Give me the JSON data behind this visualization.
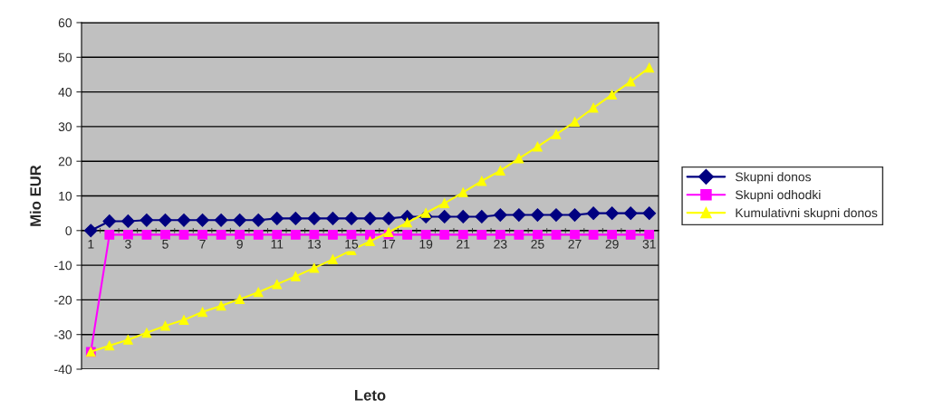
{
  "chart_data": {
    "type": "line",
    "xlabel": "Leto",
    "ylabel": "Mio EUR",
    "categories": [
      "1",
      null,
      "3",
      null,
      "5",
      null,
      "7",
      null,
      "9",
      null,
      "11",
      null,
      "13",
      null,
      "15",
      null,
      "17",
      null,
      "19",
      null,
      "21",
      null,
      "23",
      null,
      "25",
      null,
      "27",
      null,
      "29",
      null,
      "31"
    ],
    "series": [
      {
        "name": "Skupni donos",
        "color": "#000080",
        "marker": "diamond",
        "values": [
          0,
          2.7,
          2.7,
          3.0,
          3.0,
          3.0,
          3.0,
          3.0,
          3.0,
          3.0,
          3.5,
          3.5,
          3.5,
          3.5,
          3.5,
          3.5,
          3.5,
          4.0,
          4.0,
          4.0,
          4.0,
          4.0,
          4.5,
          4.5,
          4.5,
          4.5,
          4.5,
          5.0,
          5.0,
          5.0,
          5.0
        ]
      },
      {
        "name": "Skupni odhodki",
        "color": "#ff00ff",
        "marker": "square",
        "values": [
          -35,
          -1.2,
          -1.2,
          -1.2,
          -1.2,
          -1.2,
          -1.2,
          -1.2,
          -1.2,
          -1.2,
          -1.2,
          -1.2,
          -1.2,
          -1.2,
          -1.2,
          -1.2,
          -1.2,
          -1.2,
          -1.2,
          -1.2,
          -1.2,
          -1.2,
          -1.2,
          -1.2,
          -1.2,
          -1.2,
          -1.2,
          -1.2,
          -1.2,
          -1.2,
          -1.2
        ]
      },
      {
        "name": "Kumulativni skupni donos",
        "color": "#ffff00",
        "marker": "triangle",
        "values": [
          -35,
          -33.2,
          -31.5,
          -29.5,
          -27.5,
          -25.8,
          -23.5,
          -21.7,
          -19.8,
          -17.8,
          -15.5,
          -13.2,
          -10.8,
          -8.3,
          -5.7,
          -3.1,
          -0.5,
          2.3,
          5.1,
          7.9,
          11.0,
          14.3,
          17.3,
          20.8,
          24.2,
          27.8,
          31.4,
          35.4,
          39.2,
          43.0,
          47.0
        ]
      }
    ],
    "ylim": [
      -40,
      60
    ],
    "yticks": [
      -40,
      -30,
      -20,
      -10,
      0,
      10,
      20,
      30,
      40,
      50,
      60
    ],
    "grid": "y",
    "legend": "right",
    "line_style": "solid"
  }
}
